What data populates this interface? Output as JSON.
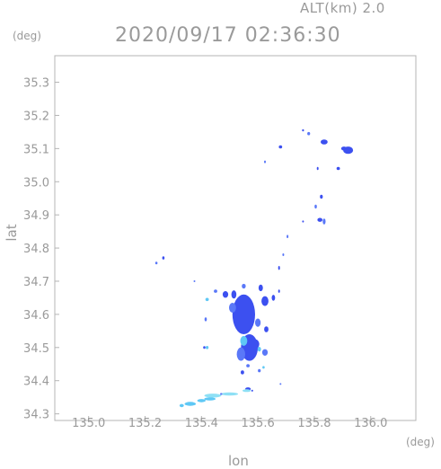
{
  "header": {
    "altitude_label": "ALT(km)  2.0",
    "timestamp": "2020/09/17  02:36:30"
  },
  "chart_data": {
    "type": "heatmap",
    "title": "2020/09/17  02:36:30",
    "subtitle": "ALT(km)  2.0",
    "xlabel": "lon",
    "ylabel": "lat",
    "x_unit": "(deg)",
    "y_unit": "(deg)",
    "xlim": [
      134.88,
      136.16
    ],
    "ylim": [
      34.28,
      35.38
    ],
    "xticks": [
      135.0,
      135.2,
      135.4,
      135.6,
      135.8,
      136.0
    ],
    "xtick_labels": [
      "135.0",
      "135.2",
      "135.4",
      "135.6",
      "135.8",
      "136.0"
    ],
    "yticks": [
      34.3,
      34.4,
      34.5,
      34.6,
      34.7,
      34.8,
      34.9,
      35.0,
      35.1,
      35.2,
      35.3
    ],
    "ytick_labels": [
      "34.3",
      "34.4",
      "34.5",
      "34.6",
      "34.7",
      "34.8",
      "34.9",
      "35.0",
      "35.1",
      "35.2",
      "35.3"
    ],
    "grid": false,
    "colors": {
      "strong": "#3c50f0",
      "medium": "#5a78f8",
      "weak": "#5fc8f5",
      "faint": "#8ee0f5"
    },
    "echoes": [
      {
        "lon": 135.92,
        "lat": 35.095,
        "w": 0.035,
        "h": 0.022,
        "c": "strong"
      },
      {
        "lon": 135.905,
        "lat": 35.1,
        "w": 0.02,
        "h": 0.012,
        "c": "strong"
      },
      {
        "lon": 135.835,
        "lat": 35.12,
        "w": 0.025,
        "h": 0.015,
        "c": "strong"
      },
      {
        "lon": 135.78,
        "lat": 35.145,
        "w": 0.01,
        "h": 0.01,
        "c": "medium"
      },
      {
        "lon": 135.76,
        "lat": 35.155,
        "w": 0.007,
        "h": 0.007,
        "c": "strong"
      },
      {
        "lon": 135.68,
        "lat": 35.105,
        "w": 0.012,
        "h": 0.01,
        "c": "strong"
      },
      {
        "lon": 135.885,
        "lat": 35.04,
        "w": 0.012,
        "h": 0.01,
        "c": "strong"
      },
      {
        "lon": 135.812,
        "lat": 35.04,
        "w": 0.006,
        "h": 0.01,
        "c": "strong"
      },
      {
        "lon": 135.625,
        "lat": 35.06,
        "w": 0.006,
        "h": 0.008,
        "c": "medium"
      },
      {
        "lon": 135.825,
        "lat": 34.955,
        "w": 0.01,
        "h": 0.012,
        "c": "strong"
      },
      {
        "lon": 135.805,
        "lat": 34.925,
        "w": 0.008,
        "h": 0.012,
        "c": "medium"
      },
      {
        "lon": 135.82,
        "lat": 34.885,
        "w": 0.018,
        "h": 0.012,
        "c": "strong"
      },
      {
        "lon": 135.835,
        "lat": 34.88,
        "w": 0.01,
        "h": 0.018,
        "c": "medium"
      },
      {
        "lon": 135.76,
        "lat": 34.88,
        "w": 0.006,
        "h": 0.006,
        "c": "strong"
      },
      {
        "lon": 135.705,
        "lat": 34.835,
        "w": 0.006,
        "h": 0.01,
        "c": "medium"
      },
      {
        "lon": 135.69,
        "lat": 34.78,
        "w": 0.005,
        "h": 0.008,
        "c": "medium"
      },
      {
        "lon": 135.675,
        "lat": 34.74,
        "w": 0.006,
        "h": 0.012,
        "c": "strong"
      },
      {
        "lon": 135.265,
        "lat": 34.77,
        "w": 0.008,
        "h": 0.01,
        "c": "strong"
      },
      {
        "lon": 135.24,
        "lat": 34.755,
        "w": 0.008,
        "h": 0.008,
        "c": "medium"
      },
      {
        "lon": 135.375,
        "lat": 34.7,
        "w": 0.004,
        "h": 0.004,
        "c": "medium"
      },
      {
        "lon": 135.55,
        "lat": 34.6,
        "w": 0.08,
        "h": 0.12,
        "c": "strong"
      },
      {
        "lon": 135.57,
        "lat": 34.5,
        "w": 0.06,
        "h": 0.08,
        "c": "strong"
      },
      {
        "lon": 135.54,
        "lat": 34.48,
        "w": 0.03,
        "h": 0.04,
        "c": "medium"
      },
      {
        "lon": 135.51,
        "lat": 34.62,
        "w": 0.025,
        "h": 0.03,
        "c": "medium"
      },
      {
        "lon": 135.485,
        "lat": 34.66,
        "w": 0.02,
        "h": 0.02,
        "c": "strong"
      },
      {
        "lon": 135.45,
        "lat": 34.67,
        "w": 0.012,
        "h": 0.01,
        "c": "medium"
      },
      {
        "lon": 135.42,
        "lat": 34.645,
        "w": 0.012,
        "h": 0.01,
        "c": "weak"
      },
      {
        "lon": 135.415,
        "lat": 34.585,
        "w": 0.008,
        "h": 0.012,
        "c": "medium"
      },
      {
        "lon": 135.515,
        "lat": 34.66,
        "w": 0.018,
        "h": 0.025,
        "c": "strong"
      },
      {
        "lon": 135.55,
        "lat": 34.685,
        "w": 0.014,
        "h": 0.014,
        "c": "medium"
      },
      {
        "lon": 135.61,
        "lat": 34.68,
        "w": 0.015,
        "h": 0.02,
        "c": "strong"
      },
      {
        "lon": 135.625,
        "lat": 34.64,
        "w": 0.025,
        "h": 0.03,
        "c": "strong"
      },
      {
        "lon": 135.6,
        "lat": 34.575,
        "w": 0.02,
        "h": 0.025,
        "c": "medium"
      },
      {
        "lon": 135.63,
        "lat": 34.555,
        "w": 0.015,
        "h": 0.018,
        "c": "strong"
      },
      {
        "lon": 135.655,
        "lat": 34.65,
        "w": 0.012,
        "h": 0.018,
        "c": "strong"
      },
      {
        "lon": 135.675,
        "lat": 34.67,
        "w": 0.006,
        "h": 0.01,
        "c": "strong"
      },
      {
        "lon": 135.59,
        "lat": 34.51,
        "w": 0.03,
        "h": 0.03,
        "c": "strong"
      },
      {
        "lon": 135.605,
        "lat": 34.495,
        "w": 0.012,
        "h": 0.014,
        "c": "weak"
      },
      {
        "lon": 135.625,
        "lat": 34.485,
        "w": 0.02,
        "h": 0.02,
        "c": "medium"
      },
      {
        "lon": 135.55,
        "lat": 34.52,
        "w": 0.025,
        "h": 0.03,
        "c": "weak"
      },
      {
        "lon": 135.42,
        "lat": 34.5,
        "w": 0.01,
        "h": 0.01,
        "c": "weak"
      },
      {
        "lon": 135.41,
        "lat": 34.5,
        "w": 0.008,
        "h": 0.008,
        "c": "strong"
      },
      {
        "lon": 135.565,
        "lat": 34.445,
        "w": 0.012,
        "h": 0.01,
        "c": "medium"
      },
      {
        "lon": 135.545,
        "lat": 34.425,
        "w": 0.012,
        "h": 0.012,
        "c": "strong"
      },
      {
        "lon": 135.605,
        "lat": 34.43,
        "w": 0.01,
        "h": 0.01,
        "c": "medium"
      },
      {
        "lon": 135.62,
        "lat": 34.44,
        "w": 0.008,
        "h": 0.008,
        "c": "weak"
      },
      {
        "lon": 135.565,
        "lat": 34.375,
        "w": 0.02,
        "h": 0.01,
        "c": "strong"
      },
      {
        "lon": 135.68,
        "lat": 34.39,
        "w": 0.004,
        "h": 0.004,
        "c": "medium"
      },
      {
        "lon": 135.44,
        "lat": 34.355,
        "w": 0.06,
        "h": 0.012,
        "c": "faint"
      },
      {
        "lon": 135.5,
        "lat": 34.36,
        "w": 0.06,
        "h": 0.01,
        "c": "faint"
      },
      {
        "lon": 135.43,
        "lat": 34.345,
        "w": 0.04,
        "h": 0.01,
        "c": "weak"
      },
      {
        "lon": 135.4,
        "lat": 34.34,
        "w": 0.03,
        "h": 0.01,
        "c": "weak"
      },
      {
        "lon": 135.36,
        "lat": 34.33,
        "w": 0.04,
        "h": 0.012,
        "c": "weak"
      },
      {
        "lon": 135.33,
        "lat": 34.325,
        "w": 0.015,
        "h": 0.01,
        "c": "weak"
      },
      {
        "lon": 135.56,
        "lat": 34.37,
        "w": 0.03,
        "h": 0.008,
        "c": "faint"
      },
      {
        "lon": 135.58,
        "lat": 34.37,
        "w": 0.006,
        "h": 0.006,
        "c": "strong"
      },
      {
        "lon": 135.47,
        "lat": 34.36,
        "w": 0.008,
        "h": 0.006,
        "c": "medium"
      }
    ]
  }
}
